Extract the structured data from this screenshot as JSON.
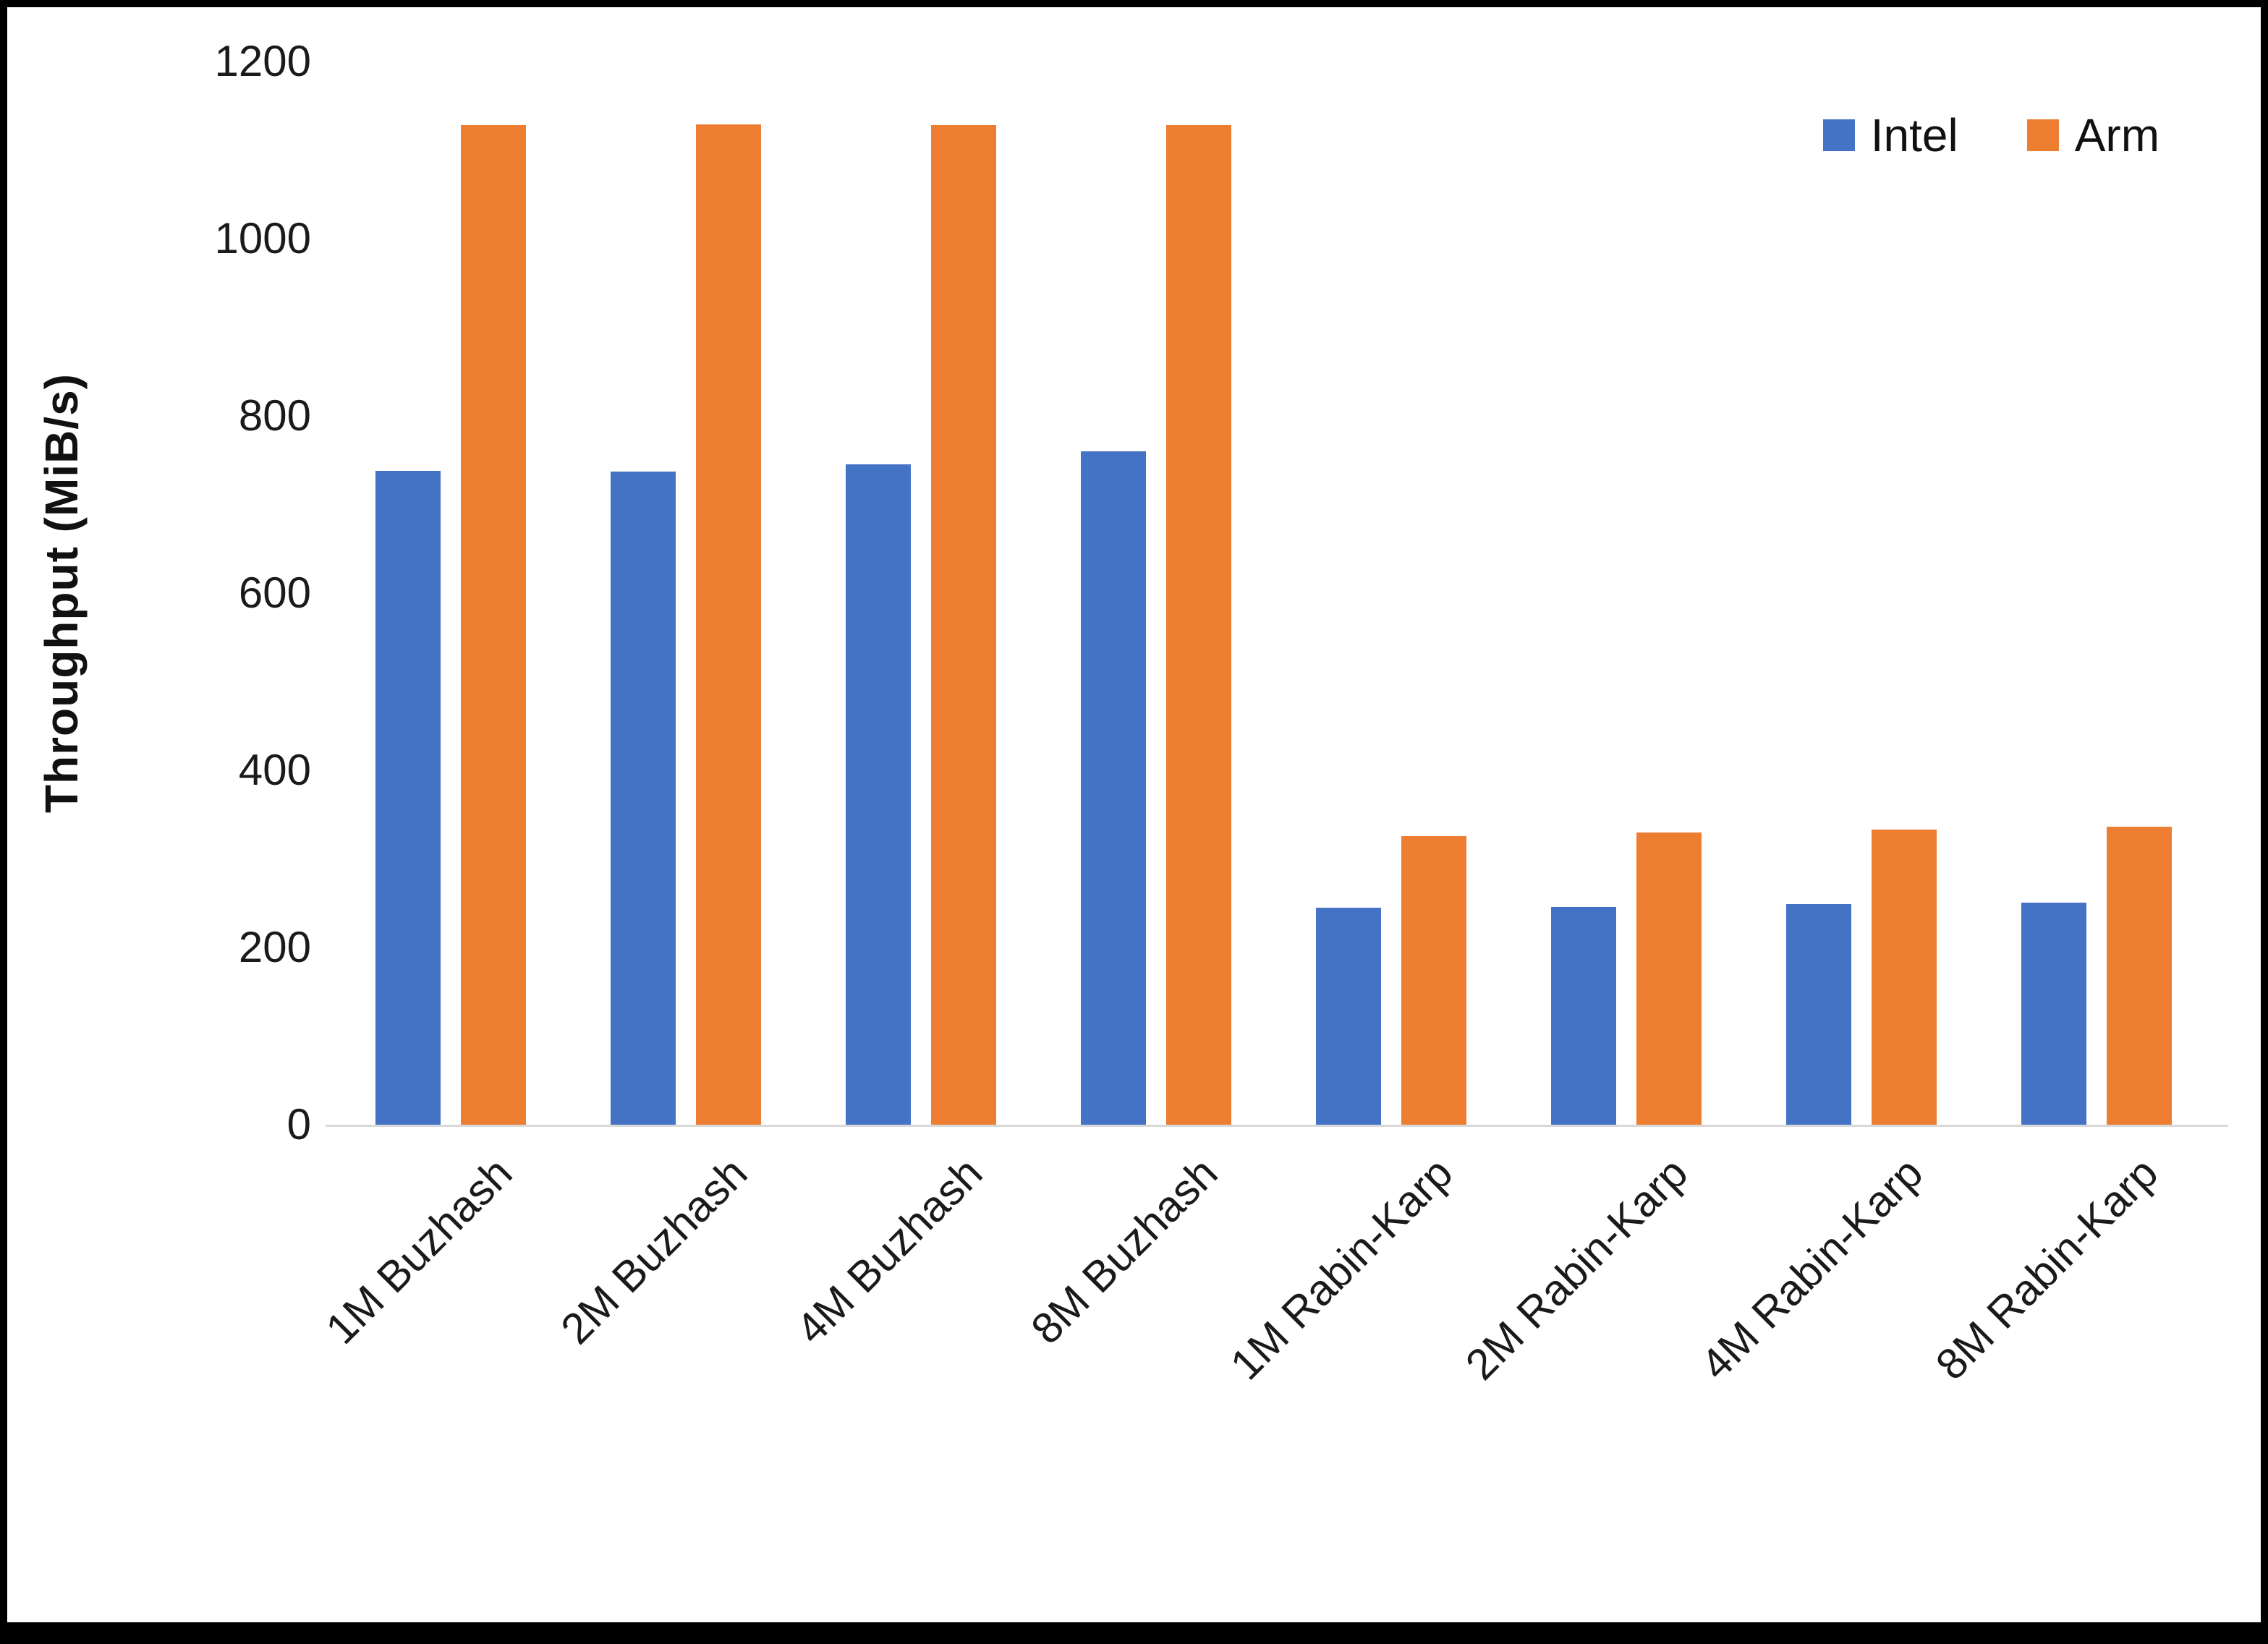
{
  "chart_data": {
    "type": "bar",
    "title": "",
    "xlabel": "",
    "ylabel": "Throughput (MiB/s)",
    "ylim": [
      0,
      1200
    ],
    "yticks": [
      0,
      200,
      400,
      600,
      800,
      1000,
      1200
    ],
    "grid": false,
    "legend_position": "top-right",
    "categories": [
      "1M Buzhash",
      "2M Buzhash",
      "4M Buzhash",
      "8M Buzhash",
      "1M Rabin-Karp",
      "2M Rabin-Karp",
      "4M Rabin-Karp",
      "8M Rabin-Karp"
    ],
    "series": [
      {
        "name": "Intel",
        "color": "#4472C4",
        "values": [
          738,
          737,
          745,
          760,
          245,
          246,
          249,
          251
        ]
      },
      {
        "name": "Arm",
        "color": "#ED7D31",
        "values": [
          1128,
          1129,
          1128,
          1128,
          326,
          330,
          333,
          336
        ]
      }
    ]
  }
}
